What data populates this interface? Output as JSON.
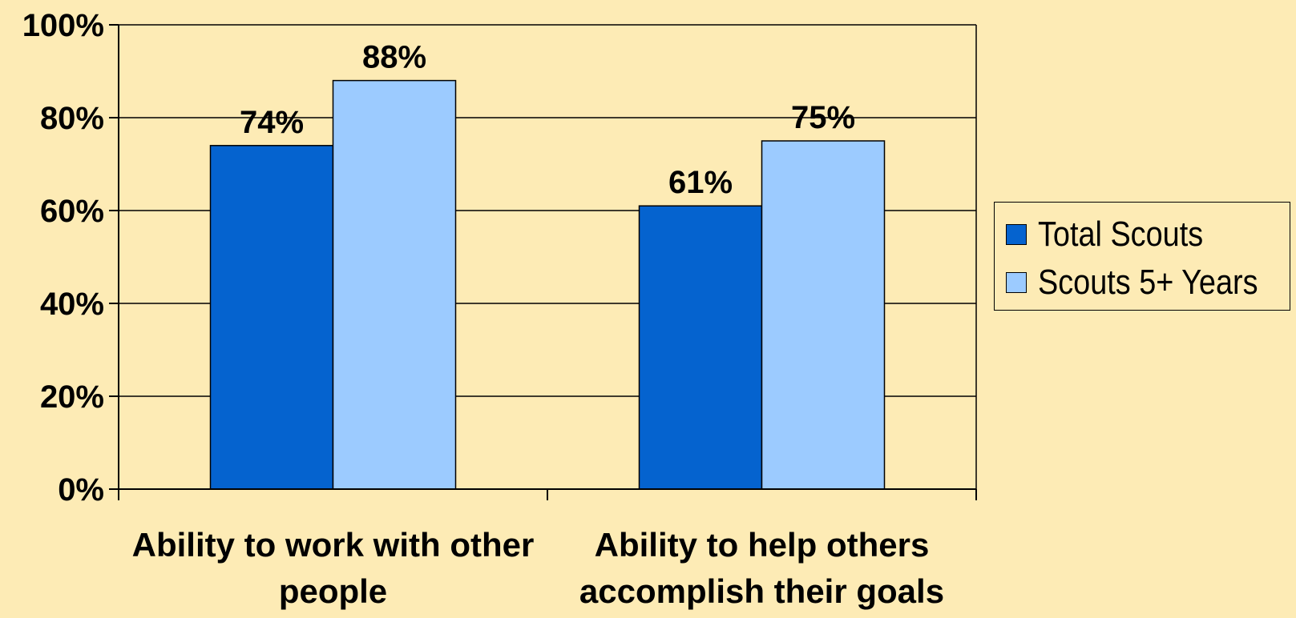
{
  "colors": {
    "background": "#FDEBB5",
    "series_total": "#0563CF",
    "series_5plus": "#9CCBFF",
    "axis": "#000000"
  },
  "chart_data": {
    "type": "bar",
    "title": "",
    "xlabel": "",
    "ylabel": "",
    "ylim": [
      0,
      100
    ],
    "y_ticks": [
      "0%",
      "20%",
      "40%",
      "60%",
      "80%",
      "100%"
    ],
    "y_tick_values": [
      0,
      20,
      40,
      60,
      80,
      100
    ],
    "grid": true,
    "legend_position": "right",
    "categories": [
      [
        "Ability to work with other",
        "people"
      ],
      [
        "Ability to help others",
        "accomplish their goals"
      ]
    ],
    "series": [
      {
        "name": "Total Scouts",
        "values": [
          74,
          61
        ],
        "labels": [
          "74%",
          "61%"
        ],
        "color": "#0563CF"
      },
      {
        "name": "Scouts 5+ Years",
        "values": [
          88,
          75
        ],
        "labels": [
          "88%",
          "75%"
        ],
        "color": "#9CCBFF"
      }
    ]
  },
  "legend": {
    "items": [
      {
        "label": "Total Scouts"
      },
      {
        "label": "Scouts 5+ Years"
      }
    ]
  }
}
